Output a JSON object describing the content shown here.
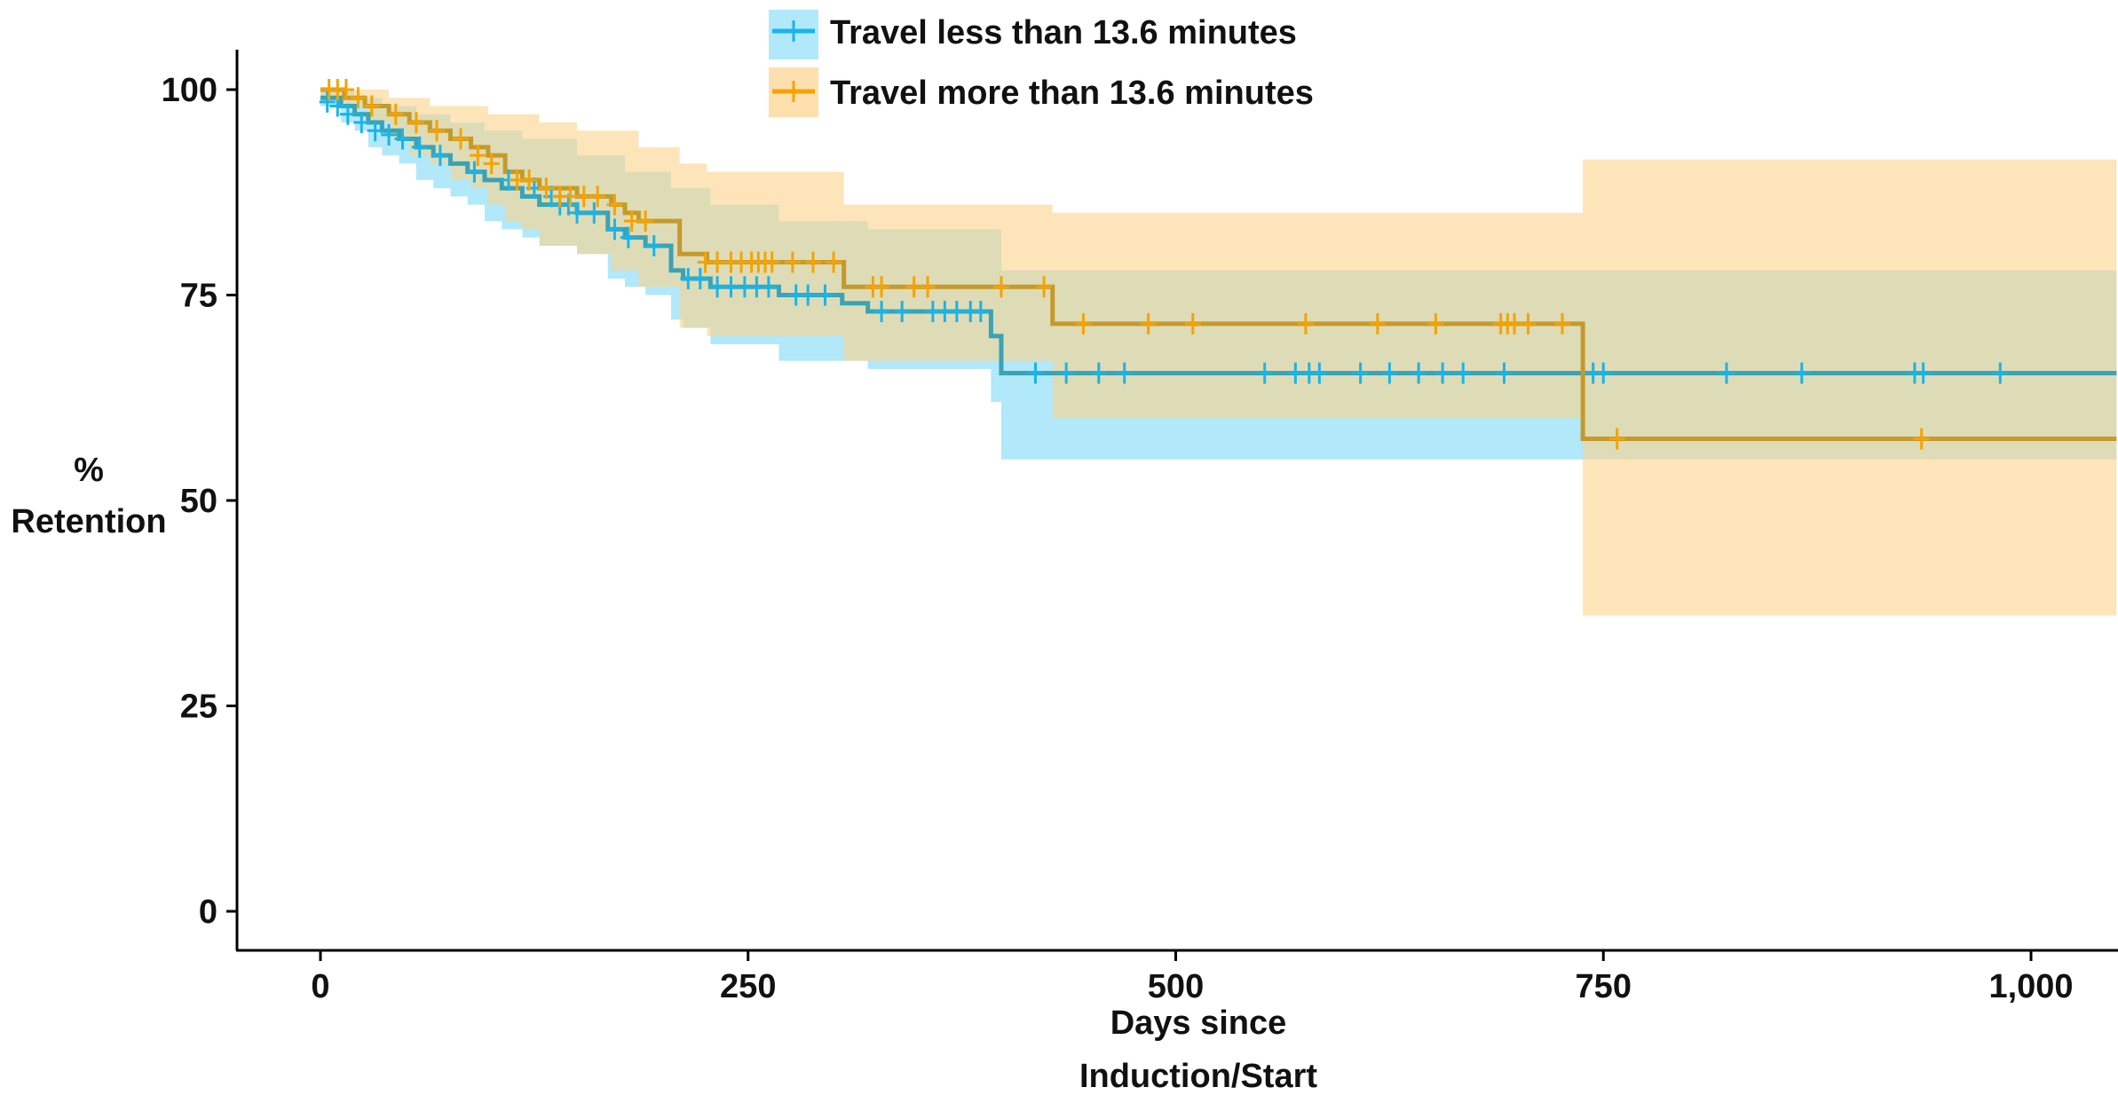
{
  "chart_data": {
    "type": "line",
    "subtype": "kaplan-meier",
    "title": "",
    "xlabel": [
      "Days since",
      "Induction/Start"
    ],
    "ylabel": [
      "%",
      "Retention"
    ],
    "xlim": [
      -50,
      1050
    ],
    "ylim": [
      -5,
      105
    ],
    "xticks": [
      0,
      250,
      500,
      750,
      1000
    ],
    "xtick_labels": [
      "0",
      "250",
      "500",
      "750",
      "1,000"
    ],
    "yticks": [
      0,
      25,
      50,
      75,
      100
    ],
    "ytick_labels": [
      "0",
      "25",
      "50",
      "75",
      "100"
    ],
    "grid": false,
    "legend_position": "top-center",
    "series": [
      {
        "name": "Travel less than 13.6 minutes",
        "color": "#1ab4e8",
        "band_color": "#7dd8f7",
        "steps": [
          [
            0,
            99
          ],
          [
            12,
            98
          ],
          [
            20,
            97
          ],
          [
            28,
            96
          ],
          [
            36,
            95
          ],
          [
            46,
            94
          ],
          [
            56,
            93
          ],
          [
            66,
            92
          ],
          [
            76,
            91
          ],
          [
            86,
            90
          ],
          [
            96,
            89
          ],
          [
            106,
            88
          ],
          [
            118,
            87
          ],
          [
            128,
            86
          ],
          [
            150,
            85
          ],
          [
            168,
            83
          ],
          [
            178,
            82
          ],
          [
            190,
            81
          ],
          [
            205,
            78
          ],
          [
            212,
            77
          ],
          [
            228,
            76
          ],
          [
            268,
            75
          ],
          [
            305,
            74
          ],
          [
            320,
            73
          ],
          [
            392,
            70
          ],
          [
            398,
            65.5
          ],
          [
            1050,
            65.5
          ]
        ],
        "lower": [
          [
            0,
            98
          ],
          [
            12,
            96
          ],
          [
            20,
            95
          ],
          [
            28,
            93
          ],
          [
            36,
            92
          ],
          [
            46,
            91
          ],
          [
            56,
            89
          ],
          [
            66,
            88
          ],
          [
            76,
            87
          ],
          [
            86,
            86
          ],
          [
            96,
            84
          ],
          [
            106,
            83
          ],
          [
            118,
            82
          ],
          [
            128,
            81
          ],
          [
            150,
            80
          ],
          [
            168,
            77
          ],
          [
            178,
            76
          ],
          [
            190,
            75
          ],
          [
            205,
            72
          ],
          [
            212,
            71
          ],
          [
            228,
            69
          ],
          [
            268,
            67
          ],
          [
            320,
            66
          ],
          [
            392,
            62
          ],
          [
            398,
            55
          ],
          [
            1050,
            55
          ]
        ],
        "upper": [
          [
            0,
            100
          ],
          [
            20,
            99
          ],
          [
            36,
            98
          ],
          [
            56,
            97
          ],
          [
            76,
            96
          ],
          [
            96,
            95
          ],
          [
            118,
            94
          ],
          [
            150,
            92
          ],
          [
            178,
            90
          ],
          [
            205,
            88
          ],
          [
            228,
            86
          ],
          [
            268,
            84
          ],
          [
            320,
            83
          ],
          [
            398,
            78
          ],
          [
            1050,
            78
          ]
        ],
        "censored": [
          [
            4,
            98.5
          ],
          [
            10,
            98
          ],
          [
            16,
            97
          ],
          [
            24,
            96
          ],
          [
            32,
            95
          ],
          [
            40,
            94.5
          ],
          [
            48,
            94
          ],
          [
            58,
            93
          ],
          [
            70,
            92
          ],
          [
            90,
            90
          ],
          [
            110,
            89
          ],
          [
            125,
            88
          ],
          [
            135,
            87
          ],
          [
            140,
            86
          ],
          [
            145,
            86
          ],
          [
            150,
            85
          ],
          [
            160,
            85
          ],
          [
            172,
            83
          ],
          [
            180,
            82
          ],
          [
            195,
            81
          ],
          [
            215,
            77
          ],
          [
            222,
            77
          ],
          [
            232,
            76
          ],
          [
            240,
            76
          ],
          [
            248,
            76
          ],
          [
            255,
            76
          ],
          [
            262,
            76
          ],
          [
            278,
            75
          ],
          [
            285,
            75
          ],
          [
            295,
            75
          ],
          [
            328,
            73
          ],
          [
            340,
            73
          ],
          [
            358,
            73
          ],
          [
            365,
            73
          ],
          [
            372,
            73
          ],
          [
            380,
            73
          ],
          [
            386,
            73
          ],
          [
            418,
            65.5
          ],
          [
            436,
            65.5
          ],
          [
            455,
            65.5
          ],
          [
            470,
            65.5
          ],
          [
            552,
            65.5
          ],
          [
            570,
            65.5
          ],
          [
            578,
            65.5
          ],
          [
            584,
            65.5
          ],
          [
            608,
            65.5
          ],
          [
            625,
            65.5
          ],
          [
            642,
            65.5
          ],
          [
            656,
            65.5
          ],
          [
            668,
            65.5
          ],
          [
            692,
            65.5
          ],
          [
            744,
            65.5
          ],
          [
            750,
            65.5
          ],
          [
            822,
            65.5
          ],
          [
            866,
            65.5
          ],
          [
            932,
            65.5
          ],
          [
            937,
            65.5
          ],
          [
            982,
            65.5
          ]
        ]
      },
      {
        "name": "Travel more than 13.6 minutes",
        "color": "#f5a300",
        "band_color": "#fcd38a",
        "steps": [
          [
            0,
            100
          ],
          [
            14,
            99
          ],
          [
            26,
            98
          ],
          [
            40,
            97
          ],
          [
            52,
            96
          ],
          [
            64,
            95
          ],
          [
            76,
            94
          ],
          [
            88,
            93
          ],
          [
            98,
            92
          ],
          [
            108,
            90
          ],
          [
            118,
            89
          ],
          [
            128,
            88
          ],
          [
            150,
            87
          ],
          [
            170,
            86
          ],
          [
            178,
            85
          ],
          [
            186,
            84
          ],
          [
            210,
            80
          ],
          [
            226,
            79
          ],
          [
            306,
            76
          ],
          [
            428,
            71.5
          ],
          [
            738,
            57.5
          ],
          [
            1050,
            57.5
          ]
        ],
        "lower": [
          [
            0,
            99
          ],
          [
            14,
            98
          ],
          [
            26,
            96
          ],
          [
            40,
            94
          ],
          [
            52,
            92
          ],
          [
            64,
            91
          ],
          [
            76,
            89
          ],
          [
            88,
            88
          ],
          [
            98,
            86
          ],
          [
            108,
            84
          ],
          [
            118,
            83
          ],
          [
            128,
            81
          ],
          [
            150,
            80
          ],
          [
            170,
            78
          ],
          [
            186,
            76
          ],
          [
            210,
            71
          ],
          [
            226,
            70
          ],
          [
            306,
            67
          ],
          [
            428,
            60
          ],
          [
            738,
            36
          ],
          [
            1050,
            36
          ]
        ],
        "upper": [
          [
            0,
            100
          ],
          [
            26,
            100
          ],
          [
            40,
            99
          ],
          [
            64,
            98
          ],
          [
            98,
            97
          ],
          [
            128,
            96
          ],
          [
            150,
            95
          ],
          [
            186,
            93
          ],
          [
            210,
            91
          ],
          [
            226,
            90
          ],
          [
            306,
            86
          ],
          [
            428,
            85
          ],
          [
            738,
            91.5
          ],
          [
            1050,
            91.5
          ]
        ],
        "censored": [
          [
            5,
            100
          ],
          [
            10,
            100
          ],
          [
            15,
            100
          ],
          [
            22,
            99
          ],
          [
            30,
            98
          ],
          [
            44,
            97
          ],
          [
            56,
            96
          ],
          [
            68,
            95
          ],
          [
            82,
            94
          ],
          [
            92,
            92
          ],
          [
            100,
            91
          ],
          [
            115,
            89
          ],
          [
            122,
            89
          ],
          [
            132,
            88
          ],
          [
            140,
            87
          ],
          [
            146,
            87
          ],
          [
            154,
            87
          ],
          [
            162,
            87
          ],
          [
            172,
            86
          ],
          [
            182,
            84
          ],
          [
            190,
            84
          ],
          [
            225,
            79
          ],
          [
            232,
            79
          ],
          [
            240,
            79
          ],
          [
            246,
            79
          ],
          [
            252,
            79
          ],
          [
            256,
            79
          ],
          [
            260,
            79
          ],
          [
            264,
            79
          ],
          [
            276,
            79
          ],
          [
            288,
            79
          ],
          [
            300,
            79
          ],
          [
            323,
            76
          ],
          [
            328,
            76
          ],
          [
            347,
            76
          ],
          [
            355,
            76
          ],
          [
            398,
            76
          ],
          [
            423,
            76
          ],
          [
            446,
            71.5
          ],
          [
            484,
            71.5
          ],
          [
            510,
            71.5
          ],
          [
            576,
            71.5
          ],
          [
            618,
            71.5
          ],
          [
            652,
            71.5
          ],
          [
            690,
            71.5
          ],
          [
            694,
            71.5
          ],
          [
            698,
            71.5
          ],
          [
            706,
            71.5
          ],
          [
            726,
            71.5
          ],
          [
            758,
            57.5
          ],
          [
            936,
            57.5
          ]
        ]
      }
    ]
  }
}
